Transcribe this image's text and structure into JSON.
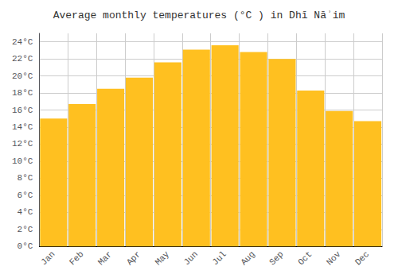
{
  "chart_data": {
    "type": "bar",
    "title": "Average monthly temperatures (°C ) in Dhī Nāʾim",
    "categories": [
      "Jan",
      "Feb",
      "Mar",
      "Apr",
      "May",
      "Jun",
      "Jul",
      "Aug",
      "Sep",
      "Oct",
      "Nov",
      "Dec"
    ],
    "values": [
      15.0,
      16.7,
      18.5,
      19.8,
      21.6,
      23.1,
      23.6,
      22.8,
      22.0,
      18.3,
      15.9,
      14.7
    ],
    "color": "#FFC020",
    "ylim": [
      0,
      25
    ],
    "yticks": [
      {
        "value": 0,
        "label": "0°C"
      },
      {
        "value": 2,
        "label": "2°C"
      },
      {
        "value": 4,
        "label": "4°C"
      },
      {
        "value": 6,
        "label": "6°C"
      },
      {
        "value": 8,
        "label": "8°C"
      },
      {
        "value": 10,
        "label": "10°C"
      },
      {
        "value": 12,
        "label": "12°C"
      },
      {
        "value": 14,
        "label": "14°C"
      },
      {
        "value": 16,
        "label": "16°C"
      },
      {
        "value": 18,
        "label": "18°C"
      },
      {
        "value": 20,
        "label": "20°C"
      },
      {
        "value": 22,
        "label": "22°C"
      },
      {
        "value": 24,
        "label": "24°C"
      }
    ],
    "grid": true
  }
}
